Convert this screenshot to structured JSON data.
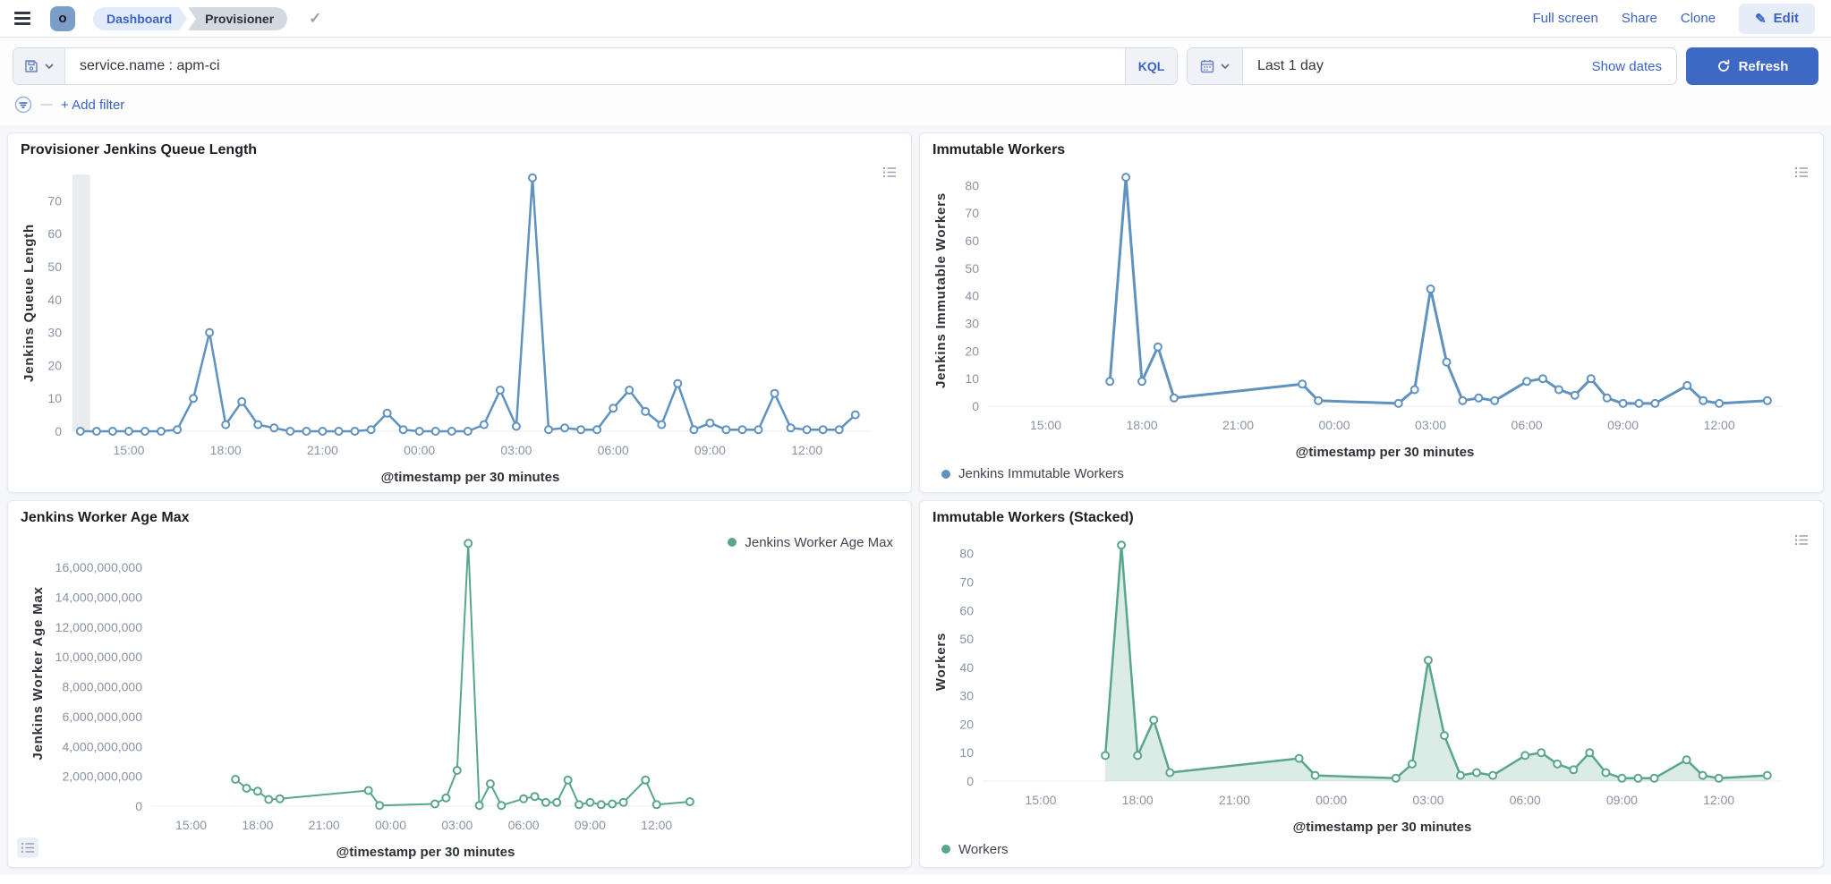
{
  "header": {
    "space_initial": "o",
    "breadcrumbs": [
      {
        "label": "Dashboard"
      },
      {
        "label": "Provisioner"
      }
    ],
    "saved_indicator_icon": "check",
    "actions": {
      "full_screen": "Full screen",
      "share": "Share",
      "clone": "Clone",
      "edit": "Edit"
    }
  },
  "query_bar": {
    "query": "service.name : apm-ci",
    "language_badge": "KQL",
    "time_range": "Last 1 day",
    "show_dates": "Show dates",
    "refresh_label": "Refresh",
    "add_filter_label": "+ Add filter"
  },
  "icons": {
    "hamburger": "menu",
    "check": "✓",
    "pencil": "✎",
    "save": "floppy-disk",
    "chevron": "chevron-down",
    "calendar": "calendar",
    "refresh": "circular-arrow",
    "filter": "funnel-in-circle",
    "legend_toggle": "list"
  },
  "colors": {
    "accent_blue": "#3B63C4",
    "refresh_button": "#3D68C4",
    "line_blue": "#6092C0",
    "line_green": "#5AA68C",
    "page_background": "#F6F7FB",
    "tick_gray": "#8A93A3"
  },
  "chart_data": [
    {
      "type": "line",
      "title": "Provisioner Jenkins Queue Length",
      "xlabel": "@timestamp per 30 minutes",
      "ylabel": "Jenkins Queue Length",
      "legend_label": null,
      "legend_position": "none",
      "color": "#6092C0",
      "line_width": 2.5,
      "grid": false,
      "x_tick_labels": [
        "15:00",
        "18:00",
        "21:00",
        "00:00",
        "03:00",
        "06:00",
        "09:00",
        "12:00"
      ],
      "x_tick_pos": [
        1.5,
        4.5,
        7.5,
        10.5,
        13.5,
        16.5,
        19.5,
        22.5
      ],
      "x_unit_note": "x = hours after 13:30, one point per 30 minutes",
      "xlim": [
        -0.3,
        24.45
      ],
      "y_ticks": [
        0,
        10,
        20,
        30,
        40,
        50,
        60,
        70
      ],
      "ylim": [
        0,
        78
      ],
      "partial_bucket_band": [
        -0.25,
        0.3
      ],
      "series": [
        {
          "name": "Jenkins Queue Length",
          "x": [
            0,
            0.5,
            1,
            1.5,
            2,
            2.5,
            3,
            3.5,
            4,
            4.5,
            5,
            5.5,
            6,
            6.5,
            7,
            7.5,
            8,
            8.5,
            9,
            9.5,
            10,
            10.5,
            11,
            11.5,
            12,
            12.5,
            13,
            13.5,
            14,
            14.5,
            15,
            15.5,
            16,
            16.5,
            17,
            17.5,
            18,
            18.5,
            19,
            19.5,
            20,
            20.5,
            21,
            21.5,
            22,
            22.5,
            23,
            23.5,
            24
          ],
          "values": [
            0,
            0,
            0,
            0,
            0,
            0,
            0.5,
            10,
            30,
            2,
            9,
            2,
            1,
            0,
            0,
            0,
            0,
            0,
            0.5,
            5.5,
            0.5,
            0,
            0,
            0,
            0,
            2,
            12.5,
            1.5,
            77,
            0.5,
            1,
            0.5,
            0.5,
            7,
            12.5,
            6,
            2,
            14.5,
            0.5,
            2.5,
            0.5,
            0.5,
            0.5,
            11.5,
            1,
            0.5,
            0.5,
            0.5,
            5
          ]
        }
      ]
    },
    {
      "type": "line",
      "title": "Immutable Workers",
      "xlabel": "@timestamp per 30 minutes",
      "ylabel": "Jenkins Immutable Workers",
      "legend_label": "Jenkins Immutable Workers",
      "legend_position": "bottom",
      "color": "#6092C0",
      "line_width": 3,
      "grid": false,
      "x_tick_labels": [
        "15:00",
        "18:00",
        "21:00",
        "00:00",
        "03:00",
        "06:00",
        "09:00",
        "12:00"
      ],
      "x_tick_pos": [
        1.5,
        4.5,
        7.5,
        10.5,
        13.5,
        16.5,
        19.5,
        22.5
      ],
      "x_unit_note": "x = hours after 13:30",
      "xlim": [
        -0.3,
        24.45
      ],
      "y_ticks": [
        0,
        10,
        20,
        30,
        40,
        50,
        60,
        70,
        80
      ],
      "ylim": [
        0,
        84
      ],
      "partial_bucket_band": null,
      "series": [
        {
          "name": "Jenkins Immutable Workers",
          "x": [
            3.5,
            4,
            4.5,
            5,
            5.5,
            9.5,
            10,
            12.5,
            13,
            13.5,
            14,
            14.5,
            15,
            15.5,
            16.5,
            17,
            17.5,
            18,
            18.5,
            19,
            19.5,
            20,
            20.5,
            21.5,
            22,
            22.5,
            24
          ],
          "values": [
            9,
            83,
            9,
            21.5,
            3,
            8,
            2,
            1,
            6,
            42.5,
            16,
            2,
            3,
            2,
            9,
            10,
            6,
            4,
            10,
            3,
            1,
            1,
            1,
            7.5,
            2,
            1,
            2
          ]
        }
      ]
    },
    {
      "type": "line",
      "title": "Jenkins Worker Age Max",
      "xlabel": "@timestamp per 30 minutes",
      "ylabel": "Jenkins Worker Age Max",
      "legend_label": "Jenkins Worker Age Max",
      "legend_position": "top-right",
      "color": "#5AA68C",
      "line_width": 2,
      "grid": false,
      "x_tick_labels": [
        "15:00",
        "18:00",
        "21:00",
        "00:00",
        "03:00",
        "06:00",
        "09:00",
        "12:00"
      ],
      "x_tick_pos": [
        1.5,
        4.5,
        7.5,
        10.5,
        13.5,
        16.5,
        19.5,
        22.5
      ],
      "x_unit_note": "x = hours after 13:30",
      "xlim": [
        -0.3,
        24.45
      ],
      "y_ticks": [
        0,
        2000000000,
        4000000000,
        6000000000,
        8000000000,
        10000000000,
        12000000000,
        14000000000,
        16000000000
      ],
      "y_tick_labels": [
        "0",
        "2,000,000,000",
        "4,000,000,000",
        "6,000,000,000",
        "8,000,000,000",
        "10,000,000,000",
        "12,000,000,000",
        "14,000,000,000",
        "16,000,000,000"
      ],
      "ylim": [
        0,
        17800000000
      ],
      "partial_bucket_band": null,
      "series": [
        {
          "name": "Jenkins Worker Age Max",
          "x": [
            3.5,
            4,
            4.5,
            5,
            5.5,
            9.5,
            10,
            12.5,
            13,
            13.5,
            14,
            14.5,
            15,
            15.5,
            16.5,
            17,
            17.5,
            18,
            18.5,
            19,
            19.5,
            20,
            20.5,
            21,
            22,
            22.5,
            24
          ],
          "values": [
            1800000000,
            1200000000,
            1000000000,
            450000000,
            500000000,
            1050000000,
            50000000,
            150000000,
            550000000,
            2400000000,
            17600000000,
            50000000,
            1500000000,
            50000000,
            500000000,
            650000000,
            250000000,
            250000000,
            1750000000,
            100000000,
            250000000,
            100000000,
            150000000,
            250000000,
            1750000000,
            100000000,
            300000000
          ]
        }
      ]
    },
    {
      "type": "area",
      "title": "Immutable Workers (Stacked)",
      "xlabel": "@timestamp per 30 minutes",
      "ylabel": "Workers",
      "legend_label": "Workers",
      "legend_position": "bottom",
      "color": "#5AA68C",
      "line_width": 2.5,
      "grid": false,
      "x_tick_labels": [
        "15:00",
        "18:00",
        "21:00",
        "00:00",
        "03:00",
        "06:00",
        "09:00",
        "12:00"
      ],
      "x_tick_pos": [
        1.5,
        4.5,
        7.5,
        10.5,
        13.5,
        16.5,
        19.5,
        22.5
      ],
      "x_unit_note": "x = hours after 13:30",
      "xlim": [
        -0.3,
        24.45
      ],
      "y_ticks": [
        0,
        10,
        20,
        30,
        40,
        50,
        60,
        70,
        80
      ],
      "ylim": [
        0,
        84
      ],
      "partial_bucket_band": null,
      "series": [
        {
          "name": "Workers",
          "x": [
            3.5,
            4,
            4.5,
            5,
            5.5,
            9.5,
            10,
            12.5,
            13,
            13.5,
            14,
            14.5,
            15,
            15.5,
            16.5,
            17,
            17.5,
            18,
            18.5,
            19,
            19.5,
            20,
            20.5,
            21.5,
            22,
            22.5,
            24
          ],
          "values": [
            9,
            83,
            9,
            21.5,
            3,
            8,
            2,
            1,
            6,
            42.5,
            16,
            2,
            3,
            2,
            9,
            10,
            6,
            4,
            10,
            3,
            1,
            1,
            1,
            7.5,
            2,
            1,
            2
          ]
        }
      ]
    }
  ]
}
